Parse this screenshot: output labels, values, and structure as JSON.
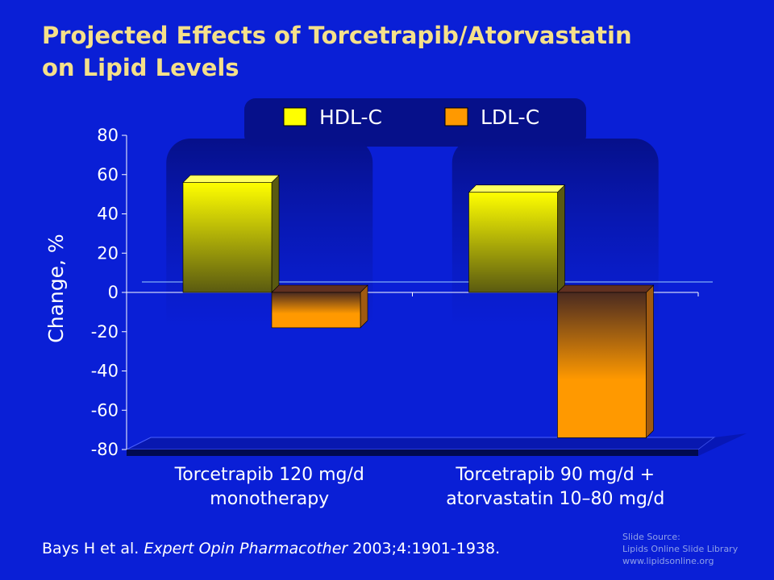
{
  "title": {
    "line1": "Projected Effects of Torcetrapib/Atorvastatin",
    "line2": "on Lipid Levels"
  },
  "chart_data": {
    "type": "bar",
    "categories": [
      "Torcetrapib 120 mg/d monotherapy",
      "Torcetrapib 90 mg/d + atorvastatin 10–80 mg/d"
    ],
    "category_lines": [
      [
        "Torcetrapib 120 mg/d",
        "monotherapy"
      ],
      [
        "Torcetrapib 90 mg/d +",
        "atorvastatin 10–80 mg/d"
      ]
    ],
    "series": [
      {
        "name": "HDL-C",
        "values": [
          56,
          51
        ],
        "color": "#ffff00"
      },
      {
        "name": "LDL-C",
        "values": [
          -18,
          -74
        ],
        "color": "#ff9900"
      }
    ],
    "ylabel": "Change, %",
    "ylim": [
      -80,
      80
    ],
    "yticks": [
      80,
      60,
      40,
      20,
      0,
      -20,
      -40,
      -60,
      -80
    ],
    "legend_position": "top"
  },
  "citation": {
    "authors": "Bays H et al.",
    "journal": "Expert Opin Pharmacother",
    "details": "2003;4:1901-1938."
  },
  "source": {
    "line1": "Slide Source:",
    "line2": "Lipids Online Slide Library",
    "line3": "www.lipidsonline.org"
  },
  "colors": {
    "background": "#0a1fd6",
    "title": "#f5e08a",
    "hdl": "#ffff00",
    "ldl": "#ff9900"
  }
}
